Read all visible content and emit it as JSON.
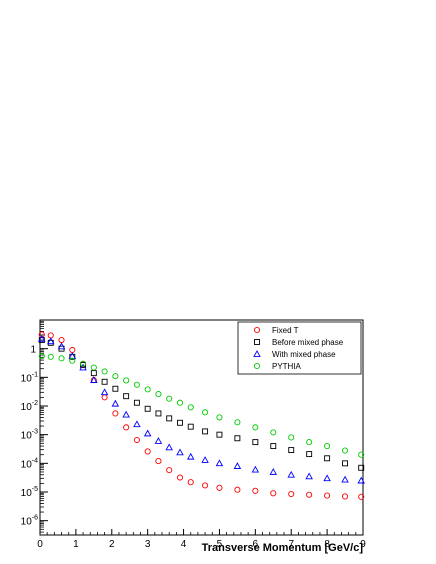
{
  "chart_data": {
    "type": "scatter",
    "title": "",
    "xlabel": "Transverse Momentum [GeV/c]",
    "ylabel": "",
    "xlim": [
      0,
      9
    ],
    "ylim_log10": [
      -6.5,
      1.0
    ],
    "y_scale": "log",
    "x_ticks": [
      {
        "value": 0,
        "label": "0"
      },
      {
        "value": 1,
        "label": "1"
      },
      {
        "value": 2,
        "label": "2"
      },
      {
        "value": 3,
        "label": "3"
      },
      {
        "value": 4,
        "label": "4"
      },
      {
        "value": 5,
        "label": "5"
      },
      {
        "value": 6,
        "label": "6"
      },
      {
        "value": 7,
        "label": "7"
      },
      {
        "value": 8,
        "label": "8"
      },
      {
        "value": 9,
        "label": "9"
      }
    ],
    "y_ticks": [
      {
        "value": 1,
        "base": "1",
        "exp": ""
      },
      {
        "value": 0.1,
        "base": "10",
        "exp": "-1"
      },
      {
        "value": 0.01,
        "base": "10",
        "exp": "-2"
      },
      {
        "value": 0.001,
        "base": "10",
        "exp": "-3"
      },
      {
        "value": 0.0001,
        "base": "10",
        "exp": "-4"
      },
      {
        "value": 1e-05,
        "base": "10",
        "exp": "-5"
      },
      {
        "value": 1e-06,
        "base": "10",
        "exp": "-6"
      }
    ],
    "grid": false,
    "legend_position": "top-right",
    "series": [
      {
        "name": "Fixed T",
        "marker": "circle",
        "color": "#ff0000",
        "x": [
          0.05,
          0.3,
          0.6,
          0.9,
          1.2,
          1.5,
          1.8,
          2.1,
          2.4,
          2.7,
          3.0,
          3.3,
          3.6,
          3.9,
          4.2,
          4.6,
          5.0,
          5.5,
          6.0,
          6.5,
          7.0,
          7.5,
          8.0,
          8.5,
          8.95
        ],
        "y": [
          3.1,
          2.9,
          2.0,
          0.9,
          0.28,
          0.08,
          0.02,
          0.0055,
          0.0018,
          0.00065,
          0.00026,
          0.00012,
          5.8e-05,
          3.2e-05,
          2.2e-05,
          1.7e-05,
          1.4e-05,
          1.2e-05,
          1.1e-05,
          9e-06,
          8.5e-06,
          8e-06,
          7.5e-06,
          7e-06,
          6.8e-06
        ]
      },
      {
        "name": "Before mixed phase",
        "marker": "square",
        "color": "#000000",
        "x": [
          0.05,
          0.3,
          0.6,
          0.9,
          1.2,
          1.5,
          1.8,
          2.1,
          2.4,
          2.7,
          3.0,
          3.3,
          3.6,
          3.9,
          4.2,
          4.6,
          5.0,
          5.5,
          6.0,
          6.5,
          7.0,
          7.5,
          8.0,
          8.5,
          8.95
        ],
        "y": [
          2.0,
          1.6,
          1.0,
          0.52,
          0.27,
          0.14,
          0.07,
          0.04,
          0.022,
          0.013,
          0.008,
          0.0055,
          0.0037,
          0.0026,
          0.0019,
          0.0013,
          0.001,
          0.00075,
          0.00055,
          0.0004,
          0.00029,
          0.00021,
          0.00015,
          0.0001,
          7e-05
        ]
      },
      {
        "name": "With mixed phase",
        "marker": "triangle",
        "color": "#0000ff",
        "x": [
          0.05,
          0.3,
          0.6,
          0.9,
          1.2,
          1.5,
          1.8,
          2.1,
          2.4,
          2.7,
          3.0,
          3.3,
          3.6,
          3.9,
          4.2,
          4.6,
          5.0,
          5.5,
          6.0,
          6.5,
          7.0,
          7.5,
          8.0,
          8.5,
          8.95
        ],
        "y": [
          2.2,
          1.8,
          1.2,
          0.55,
          0.22,
          0.08,
          0.03,
          0.012,
          0.005,
          0.0023,
          0.0011,
          0.0006,
          0.00036,
          0.00024,
          0.00017,
          0.00013,
          0.0001,
          8e-05,
          6e-05,
          5e-05,
          4e-05,
          3.5e-05,
          3e-05,
          2.7e-05,
          2.5e-05
        ]
      },
      {
        "name": "PYTHIA",
        "marker": "circle",
        "color": "#00cc00",
        "x": [
          0.05,
          0.3,
          0.6,
          0.9,
          1.2,
          1.5,
          1.8,
          2.1,
          2.4,
          2.7,
          3.0,
          3.3,
          3.6,
          3.9,
          4.2,
          4.6,
          5.0,
          5.5,
          6.0,
          6.5,
          7.0,
          7.5,
          8.0,
          8.5,
          8.95
        ],
        "y": [
          0.55,
          0.52,
          0.46,
          0.38,
          0.3,
          0.22,
          0.16,
          0.11,
          0.078,
          0.055,
          0.038,
          0.026,
          0.018,
          0.013,
          0.009,
          0.006,
          0.004,
          0.0027,
          0.0018,
          0.0012,
          0.0008,
          0.00055,
          0.0004,
          0.00028,
          0.0002
        ]
      }
    ]
  }
}
